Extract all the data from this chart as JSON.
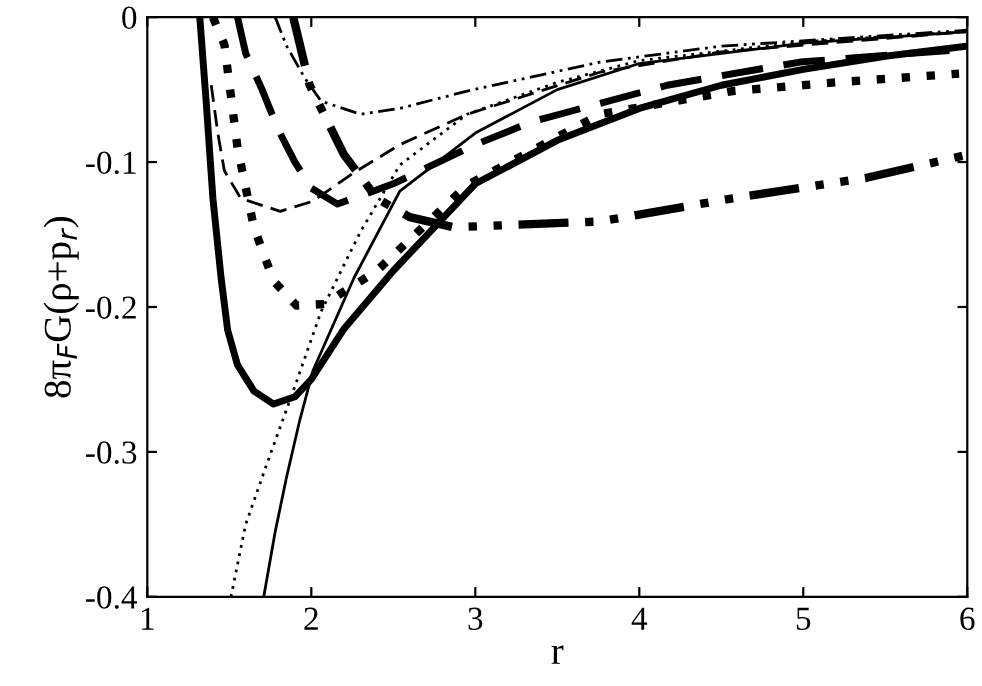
{
  "chart_data": {
    "type": "line",
    "xlabel": "r",
    "ylabel": "8π$_{F}$G(ρ+p$_{r}$)",
    "xlim": [
      1,
      6
    ],
    "ylim": [
      -0.4,
      0
    ],
    "xticks": [
      1,
      2,
      3,
      4,
      5,
      6
    ],
    "yticks": [
      -0.4,
      -0.3,
      -0.2,
      -0.1,
      0
    ],
    "grid": false,
    "legend": false,
    "marker": "none",
    "series": [
      {
        "color": "#000000",
        "line_style": "solid",
        "x": [
          1.32,
          1.36,
          1.4,
          1.45,
          1.49,
          1.55,
          1.65,
          1.77,
          1.9,
          2.0,
          2.2,
          2.5,
          2.75,
          3.0,
          3.5,
          4.0,
          4.5,
          5.0,
          5.5,
          6.0
        ],
        "values": [
          0,
          -0.06,
          -0.125,
          -0.18,
          -0.216,
          -0.24,
          -0.258,
          -0.267,
          -0.262,
          -0.25,
          -0.215,
          -0.175,
          -0.145,
          -0.115,
          -0.085,
          -0.063,
          -0.047,
          -0.036,
          -0.027,
          -0.02
        ]
      },
      {
        "color": "#000000",
        "line_style": "solid",
        "x": [
          1.71,
          1.78,
          1.85,
          1.93,
          2.01,
          2.26,
          2.54,
          3.0,
          3.5,
          4.0,
          5.0,
          6.0
        ],
        "values": [
          -0.4,
          -0.355,
          -0.317,
          -0.278,
          -0.244,
          -0.18,
          -0.12,
          -0.08,
          -0.05,
          -0.032,
          -0.018,
          -0.01
        ]
      },
      {
        "color": "#000000",
        "line_style": "dotted",
        "x": [
          1.51,
          1.6,
          1.73,
          1.89,
          2.06,
          2.3,
          2.54,
          2.95,
          3.5,
          4.0,
          5.0,
          6.0
        ],
        "values": [
          -0.4,
          -0.35,
          -0.308,
          -0.258,
          -0.203,
          -0.148,
          -0.102,
          -0.067,
          -0.045,
          -0.03,
          -0.017,
          -0.01
        ]
      },
      {
        "color": "#000000",
        "line_style": "dotted",
        "x": [
          1.4,
          1.47,
          1.55,
          1.65,
          1.77,
          1.91,
          2.08,
          2.4,
          2.95,
          3.76,
          4.57,
          5.2,
          5.95
        ],
        "values": [
          0,
          -0.019,
          -0.09,
          -0.145,
          -0.182,
          -0.199,
          -0.198,
          -0.175,
          -0.116,
          -0.067,
          -0.051,
          -0.045,
          -0.039
        ]
      },
      {
        "color": "#000000",
        "line_style": "dashed",
        "x": [
          1.55,
          1.6,
          1.7,
          1.8,
          1.9,
          2.0,
          2.16,
          2.5,
          3.0,
          3.35,
          4.17,
          4.98,
          6.0
        ],
        "values": [
          0,
          -0.025,
          -0.05,
          -0.078,
          -0.1,
          -0.118,
          -0.129,
          -0.115,
          -0.088,
          -0.072,
          -0.047,
          -0.031,
          -0.022
        ]
      },
      {
        "color": "#000000",
        "line_style": "dashed",
        "x": [
          1.39,
          1.43,
          1.47,
          1.57,
          1.81,
          2.01,
          2.25,
          2.54,
          2.95,
          3.76,
          4.5,
          6.0
        ],
        "values": [
          -0.047,
          -0.08,
          -0.106,
          -0.125,
          -0.134,
          -0.127,
          -0.108,
          -0.088,
          -0.067,
          -0.038,
          -0.024,
          -0.01
        ]
      },
      {
        "color": "#000000",
        "line_style": "dashdotdot",
        "x": [
          1.78,
          1.85,
          1.96,
          2.06,
          2.3,
          2.54,
          2.95,
          3.76,
          4.5,
          6.0
        ],
        "values": [
          0,
          -0.02,
          -0.042,
          -0.058,
          -0.067,
          -0.063,
          -0.051,
          -0.031,
          -0.02,
          -0.009
        ]
      },
      {
        "color": "#000000",
        "line_style": "dashdotdot",
        "x": [
          1.89,
          1.99,
          2.2,
          2.4,
          2.6,
          2.87,
          3.3,
          3.76,
          4.57,
          5.38,
          6.0
        ],
        "values": [
          0,
          -0.047,
          -0.095,
          -0.125,
          -0.138,
          -0.145,
          -0.143,
          -0.141,
          -0.125,
          -0.111,
          -0.095
        ]
      }
    ]
  }
}
